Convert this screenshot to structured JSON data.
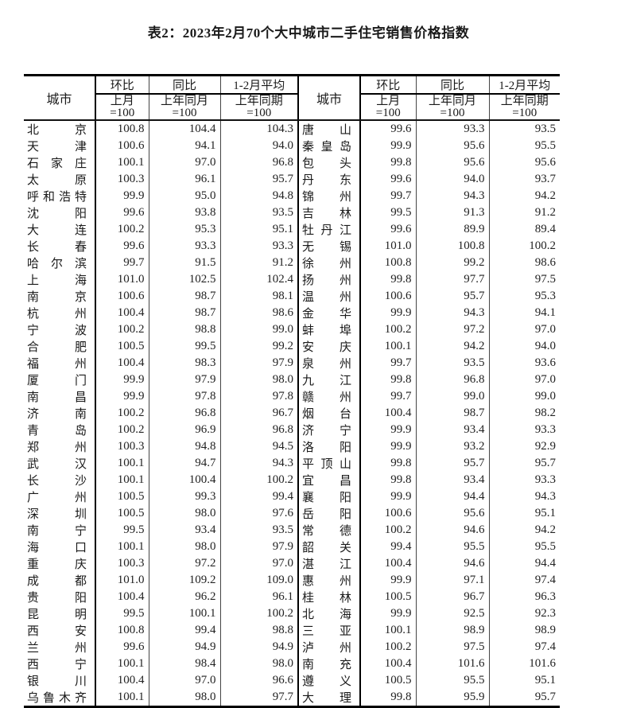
{
  "title": "表2：2023年2月70个大中城市二手住宅销售价格指数",
  "header": {
    "city": "城市",
    "groups": [
      "环比",
      "同比",
      "1-2月平均"
    ],
    "subs": [
      "上月",
      "上年同月",
      "上年同期"
    ],
    "base": "=100"
  },
  "left_rows": [
    {
      "city": "北京",
      "mom": "100.8",
      "yoy": "104.4",
      "avg": "104.3"
    },
    {
      "city": "天津",
      "mom": "100.6",
      "yoy": "94.1",
      "avg": "94.0"
    },
    {
      "city": "石家庄",
      "mom": "100.1",
      "yoy": "97.0",
      "avg": "96.8"
    },
    {
      "city": "太原",
      "mom": "100.3",
      "yoy": "96.1",
      "avg": "95.7"
    },
    {
      "city": "呼和浩特",
      "mom": "99.9",
      "yoy": "95.0",
      "avg": "94.8"
    },
    {
      "city": "沈阳",
      "mom": "99.6",
      "yoy": "93.8",
      "avg": "93.5"
    },
    {
      "city": "大连",
      "mom": "100.2",
      "yoy": "95.3",
      "avg": "95.1"
    },
    {
      "city": "长春",
      "mom": "99.6",
      "yoy": "93.3",
      "avg": "93.3"
    },
    {
      "city": "哈尔滨",
      "mom": "99.7",
      "yoy": "91.5",
      "avg": "91.2"
    },
    {
      "city": "上海",
      "mom": "101.0",
      "yoy": "102.5",
      "avg": "102.4"
    },
    {
      "city": "南京",
      "mom": "100.6",
      "yoy": "98.7",
      "avg": "98.1"
    },
    {
      "city": "杭州",
      "mom": "100.4",
      "yoy": "98.7",
      "avg": "98.6"
    },
    {
      "city": "宁波",
      "mom": "100.2",
      "yoy": "98.8",
      "avg": "99.0"
    },
    {
      "city": "合肥",
      "mom": "100.5",
      "yoy": "99.5",
      "avg": "99.2"
    },
    {
      "city": "福州",
      "mom": "100.4",
      "yoy": "98.3",
      "avg": "97.9"
    },
    {
      "city": "厦门",
      "mom": "99.9",
      "yoy": "97.9",
      "avg": "98.0"
    },
    {
      "city": "南昌",
      "mom": "99.9",
      "yoy": "97.8",
      "avg": "97.8"
    },
    {
      "city": "济南",
      "mom": "100.2",
      "yoy": "96.8",
      "avg": "96.7"
    },
    {
      "city": "青岛",
      "mom": "100.2",
      "yoy": "96.9",
      "avg": "96.8"
    },
    {
      "city": "郑州",
      "mom": "100.3",
      "yoy": "94.8",
      "avg": "94.5"
    },
    {
      "city": "武汉",
      "mom": "100.1",
      "yoy": "94.7",
      "avg": "94.3"
    },
    {
      "city": "长沙",
      "mom": "100.1",
      "yoy": "100.4",
      "avg": "100.2"
    },
    {
      "city": "广州",
      "mom": "100.5",
      "yoy": "99.3",
      "avg": "99.4"
    },
    {
      "city": "深圳",
      "mom": "100.5",
      "yoy": "98.0",
      "avg": "97.6"
    },
    {
      "city": "南宁",
      "mom": "99.5",
      "yoy": "93.4",
      "avg": "93.5"
    },
    {
      "city": "海口",
      "mom": "100.1",
      "yoy": "98.0",
      "avg": "97.9"
    },
    {
      "city": "重庆",
      "mom": "100.3",
      "yoy": "97.2",
      "avg": "97.0"
    },
    {
      "city": "成都",
      "mom": "101.0",
      "yoy": "109.2",
      "avg": "109.0"
    },
    {
      "city": "贵阳",
      "mom": "100.4",
      "yoy": "96.2",
      "avg": "96.1"
    },
    {
      "city": "昆明",
      "mom": "99.5",
      "yoy": "100.1",
      "avg": "100.2"
    },
    {
      "city": "西安",
      "mom": "100.8",
      "yoy": "99.4",
      "avg": "98.8"
    },
    {
      "city": "兰州",
      "mom": "99.6",
      "yoy": "94.9",
      "avg": "94.9"
    },
    {
      "city": "西宁",
      "mom": "100.1",
      "yoy": "98.4",
      "avg": "98.0"
    },
    {
      "city": "银川",
      "mom": "100.4",
      "yoy": "97.0",
      "avg": "96.6"
    },
    {
      "city": "乌鲁木齐",
      "mom": "100.1",
      "yoy": "98.0",
      "avg": "97.7"
    }
  ],
  "right_rows": [
    {
      "city": "唐山",
      "mom": "99.6",
      "yoy": "93.3",
      "avg": "93.5"
    },
    {
      "city": "秦皇岛",
      "mom": "99.9",
      "yoy": "95.6",
      "avg": "95.5"
    },
    {
      "city": "包头",
      "mom": "99.8",
      "yoy": "95.6",
      "avg": "95.6"
    },
    {
      "city": "丹东",
      "mom": "99.6",
      "yoy": "94.0",
      "avg": "93.7"
    },
    {
      "city": "锦州",
      "mom": "99.7",
      "yoy": "94.3",
      "avg": "94.2"
    },
    {
      "city": "吉林",
      "mom": "99.5",
      "yoy": "91.3",
      "avg": "91.2"
    },
    {
      "city": "牡丹江",
      "mom": "99.6",
      "yoy": "89.9",
      "avg": "89.4"
    },
    {
      "city": "无锡",
      "mom": "101.0",
      "yoy": "100.8",
      "avg": "100.2"
    },
    {
      "city": "徐州",
      "mom": "100.8",
      "yoy": "99.2",
      "avg": "98.6"
    },
    {
      "city": "扬州",
      "mom": "99.8",
      "yoy": "97.7",
      "avg": "97.5"
    },
    {
      "city": "温州",
      "mom": "100.6",
      "yoy": "95.7",
      "avg": "95.3"
    },
    {
      "city": "金华",
      "mom": "99.9",
      "yoy": "94.3",
      "avg": "94.1"
    },
    {
      "city": "蚌埠",
      "mom": "100.2",
      "yoy": "97.2",
      "avg": "97.0"
    },
    {
      "city": "安庆",
      "mom": "100.1",
      "yoy": "94.2",
      "avg": "94.0"
    },
    {
      "city": "泉州",
      "mom": "99.7",
      "yoy": "93.5",
      "avg": "93.6"
    },
    {
      "city": "九江",
      "mom": "99.8",
      "yoy": "96.8",
      "avg": "97.0"
    },
    {
      "city": "赣州",
      "mom": "99.7",
      "yoy": "99.0",
      "avg": "99.0"
    },
    {
      "city": "烟台",
      "mom": "100.4",
      "yoy": "98.7",
      "avg": "98.2"
    },
    {
      "city": "济宁",
      "mom": "99.9",
      "yoy": "93.4",
      "avg": "93.3"
    },
    {
      "city": "洛阳",
      "mom": "99.9",
      "yoy": "93.2",
      "avg": "92.9"
    },
    {
      "city": "平顶山",
      "mom": "99.8",
      "yoy": "95.7",
      "avg": "95.7"
    },
    {
      "city": "宜昌",
      "mom": "99.8",
      "yoy": "93.4",
      "avg": "93.3"
    },
    {
      "city": "襄阳",
      "mom": "99.9",
      "yoy": "94.4",
      "avg": "94.3"
    },
    {
      "city": "岳阳",
      "mom": "100.6",
      "yoy": "95.6",
      "avg": "95.1"
    },
    {
      "city": "常德",
      "mom": "100.2",
      "yoy": "94.6",
      "avg": "94.2"
    },
    {
      "city": "韶关",
      "mom": "99.4",
      "yoy": "95.5",
      "avg": "95.5"
    },
    {
      "city": "湛江",
      "mom": "100.4",
      "yoy": "94.6",
      "avg": "94.4"
    },
    {
      "city": "惠州",
      "mom": "99.9",
      "yoy": "97.1",
      "avg": "97.4"
    },
    {
      "city": "桂林",
      "mom": "100.5",
      "yoy": "96.7",
      "avg": "96.3"
    },
    {
      "city": "北海",
      "mom": "99.9",
      "yoy": "92.5",
      "avg": "92.3"
    },
    {
      "city": "三亚",
      "mom": "100.1",
      "yoy": "98.9",
      "avg": "98.9"
    },
    {
      "city": "泸州",
      "mom": "100.2",
      "yoy": "97.5",
      "avg": "97.4"
    },
    {
      "city": "南充",
      "mom": "100.4",
      "yoy": "101.6",
      "avg": "101.6"
    },
    {
      "city": "遵义",
      "mom": "100.5",
      "yoy": "95.5",
      "avg": "95.1"
    },
    {
      "city": "大理",
      "mom": "99.8",
      "yoy": "95.9",
      "avg": "95.7"
    }
  ]
}
